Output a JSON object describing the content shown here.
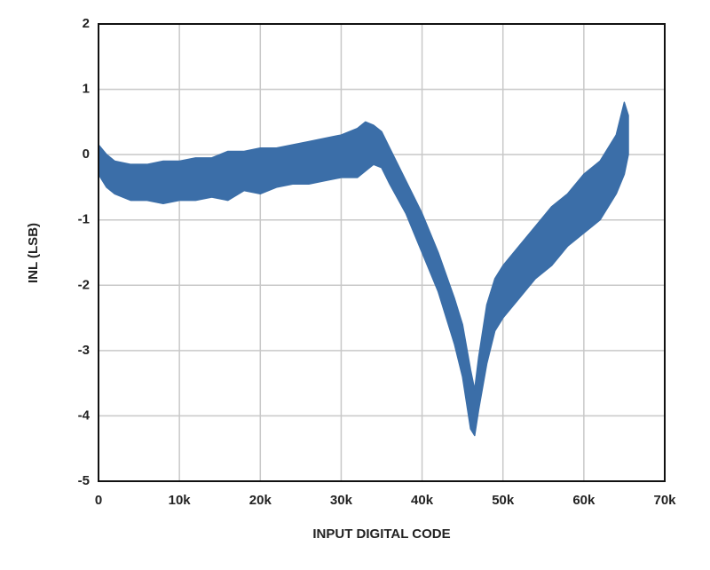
{
  "chart_data": {
    "type": "range-area",
    "x_label": "INPUT DIGITAL CODE",
    "y_label": "INL (LSB)",
    "color": "#3b6ea8",
    "grid": true,
    "x": [
      0,
      1000,
      2000,
      4000,
      6000,
      8000,
      10000,
      12000,
      14000,
      16000,
      18000,
      20000,
      22000,
      24000,
      26000,
      28000,
      30000,
      32000,
      33000,
      34000,
      35000,
      36000,
      38000,
      40000,
      42000,
      44000,
      45000,
      46000,
      46500,
      47000,
      48000,
      49000,
      50000,
      52000,
      54000,
      56000,
      58000,
      60000,
      62000,
      64000,
      65000,
      65500
    ],
    "high": [
      0.15,
      0.0,
      -0.1,
      -0.15,
      -0.15,
      -0.1,
      -0.1,
      -0.05,
      -0.05,
      0.05,
      0.05,
      0.1,
      0.1,
      0.15,
      0.2,
      0.25,
      0.3,
      0.4,
      0.5,
      0.45,
      0.35,
      0.1,
      -0.4,
      -0.9,
      -1.5,
      -2.2,
      -2.6,
      -3.3,
      -3.6,
      -3.1,
      -2.3,
      -1.9,
      -1.7,
      -1.4,
      -1.1,
      -0.8,
      -0.6,
      -0.3,
      -0.1,
      0.3,
      0.8,
      0.6
    ],
    "low": [
      -0.3,
      -0.5,
      -0.6,
      -0.7,
      -0.7,
      -0.75,
      -0.7,
      -0.7,
      -0.65,
      -0.7,
      -0.55,
      -0.6,
      -0.5,
      -0.45,
      -0.45,
      -0.4,
      -0.35,
      -0.35,
      -0.25,
      -0.15,
      -0.2,
      -0.45,
      -0.9,
      -1.5,
      -2.1,
      -2.9,
      -3.4,
      -4.2,
      -4.3,
      -3.9,
      -3.2,
      -2.7,
      -2.5,
      -2.2,
      -1.9,
      -1.7,
      -1.4,
      -1.2,
      -1.0,
      -0.6,
      -0.3,
      0.0
    ],
    "xlim": [
      0,
      70000
    ],
    "ylim": [
      -5,
      2
    ],
    "xticks": [
      0,
      {
        "value": 10000,
        "label": "10k"
      },
      {
        "value": 20000,
        "label": "20k"
      },
      {
        "value": 30000,
        "label": "30k"
      },
      {
        "value": 40000,
        "label": "40k"
      },
      {
        "value": 50000,
        "label": "50k"
      },
      {
        "value": 60000,
        "label": "60k"
      },
      {
        "value": 70000,
        "label": "70k"
      }
    ],
    "yticks": [
      -5,
      -4,
      -3,
      -2,
      -1,
      0,
      1,
      2
    ]
  }
}
